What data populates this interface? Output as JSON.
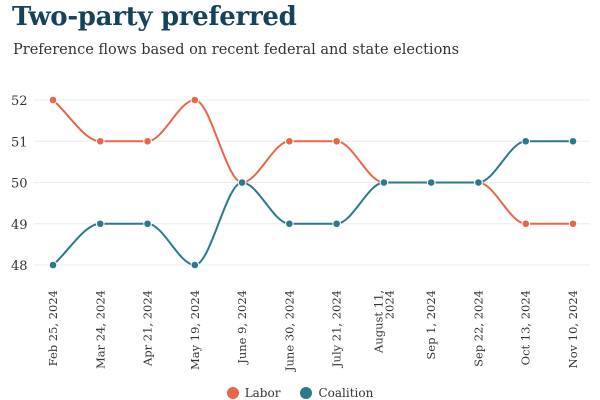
{
  "title": "Two-party preferred",
  "subtitle": "Preference flows based on recent federal and state elections",
  "colors": {
    "labor": "#e8674a",
    "coalition": "#2b7a8c",
    "grid": "#ececec",
    "axis_text": "#333333"
  },
  "chart_data": {
    "type": "line",
    "title": "Two-party preferred",
    "subtitle": "Preference flows based on recent federal and state elections",
    "xlabel": "",
    "ylabel": "",
    "categories": [
      "Feb 25, 2024",
      "Mar 24, 2024",
      "Apr 21, 2024",
      "May 19, 2024",
      "June 9, 2024",
      "June 30, 2024",
      "July 21, 2024",
      "August 11, 2024",
      "Sep 1, 2024",
      "Sep 22, 2024",
      "Oct 13, 2024",
      "Nov 10, 2024"
    ],
    "category_lines": [
      [
        "Feb 25, 2024"
      ],
      [
        "Mar 24, 2024"
      ],
      [
        "Apr 21, 2024"
      ],
      [
        "May 19, 2024"
      ],
      [
        "June 9, 2024"
      ],
      [
        "June 30, 2024"
      ],
      [
        "July 21, 2024"
      ],
      [
        "August 11,",
        "2024"
      ],
      [
        "Sep 1, 2024"
      ],
      [
        "Sep 22, 2024"
      ],
      [
        "Oct 13, 2024"
      ],
      [
        "Nov 10, 2024"
      ]
    ],
    "y_ticks": [
      48,
      49,
      50,
      51,
      52
    ],
    "ylim": [
      47.7,
      52.3
    ],
    "grid": true,
    "legend_position": "bottom-center",
    "series": [
      {
        "name": "Labor",
        "color": "#e8674a",
        "values": [
          52,
          51,
          51,
          52,
          50,
          51,
          51,
          50,
          50,
          50,
          49,
          49
        ]
      },
      {
        "name": "Coalition",
        "color": "#2b7a8c",
        "values": [
          48,
          49,
          49,
          48,
          50,
          49,
          49,
          50,
          50,
          50,
          51,
          51
        ]
      }
    ]
  }
}
